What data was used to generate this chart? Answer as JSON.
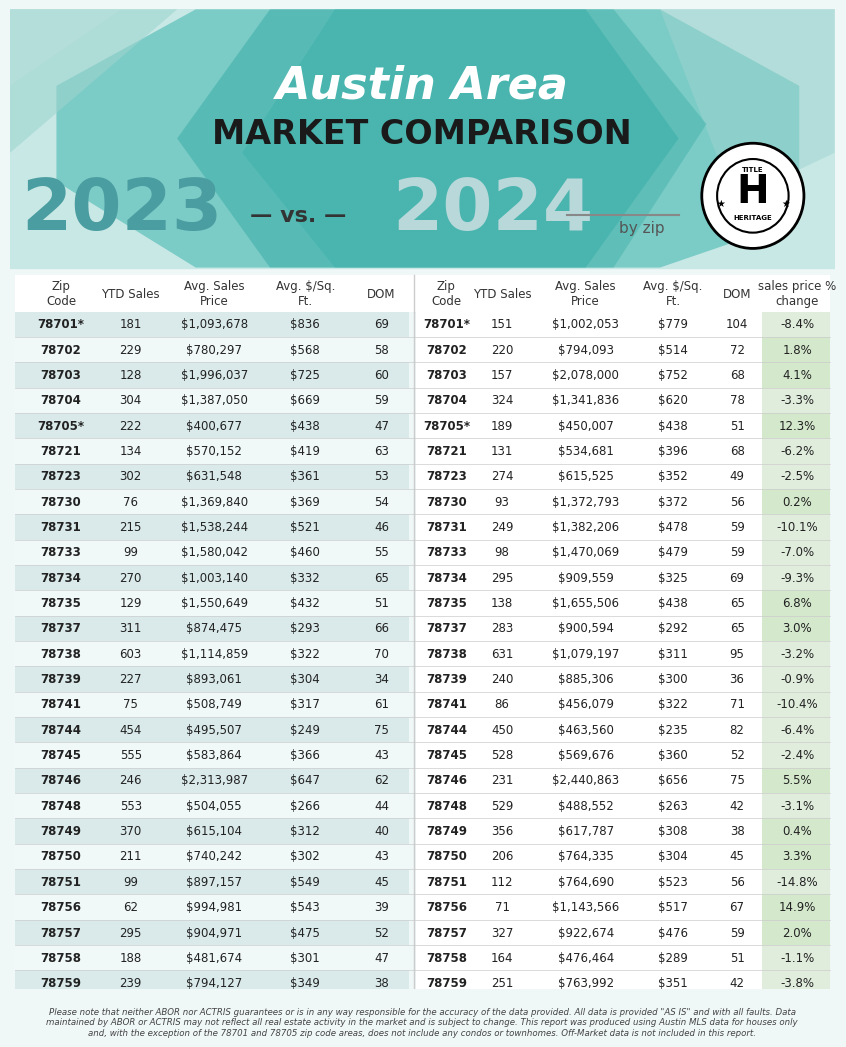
{
  "title_line1": "Austin Area",
  "title_line2": "MARKET COMPARISON",
  "year_left": "2023",
  "year_right": "2024",
  "vs_text": "— vs. —",
  "by_zip": "by zip",
  "headers_2023": [
    "Zip\nCode",
    "YTD Sales",
    "Avg. Sales\nPrice",
    "Avg. $/Sq.\nFt.",
    "DOM"
  ],
  "headers_2024": [
    "Zip\nCode",
    "YTD Sales",
    "Avg. Sales\nPrice",
    "Avg. $/Sq.\nFt.",
    "DOM",
    "sales price %\nchange"
  ],
  "rows": [
    [
      "78701*",
      181,
      "$1,093,678",
      "$836",
      69,
      "78701*",
      151,
      "$1,002,053",
      "$779",
      104,
      "-8.4%"
    ],
    [
      "78702",
      229,
      "$780,297",
      "$568",
      58,
      "78702",
      220,
      "$794,093",
      "$514",
      72,
      "1.8%"
    ],
    [
      "78703",
      128,
      "$1,996,037",
      "$725",
      60,
      "78703",
      157,
      "$2,078,000",
      "$752",
      68,
      "4.1%"
    ],
    [
      "78704",
      304,
      "$1,387,050",
      "$669",
      59,
      "78704",
      324,
      "$1,341,836",
      "$620",
      78,
      "-3.3%"
    ],
    [
      "78705*",
      222,
      "$400,677",
      "$438",
      47,
      "78705*",
      189,
      "$450,007",
      "$438",
      51,
      "12.3%"
    ],
    [
      "78721",
      134,
      "$570,152",
      "$419",
      63,
      "78721",
      131,
      "$534,681",
      "$396",
      68,
      "-6.2%"
    ],
    [
      "78723",
      302,
      "$631,548",
      "$361",
      53,
      "78723",
      274,
      "$615,525",
      "$352",
      49,
      "-2.5%"
    ],
    [
      "78730",
      76,
      "$1,369,840",
      "$369",
      54,
      "78730",
      93,
      "$1,372,793",
      "$372",
      56,
      "0.2%"
    ],
    [
      "78731",
      215,
      "$1,538,244",
      "$521",
      46,
      "78731",
      249,
      "$1,382,206",
      "$478",
      59,
      "-10.1%"
    ],
    [
      "78733",
      99,
      "$1,580,042",
      "$460",
      55,
      "78733",
      98,
      "$1,470,069",
      "$479",
      59,
      "-7.0%"
    ],
    [
      "78734",
      270,
      "$1,003,140",
      "$332",
      65,
      "78734",
      295,
      "$909,559",
      "$325",
      69,
      "-9.3%"
    ],
    [
      "78735",
      129,
      "$1,550,649",
      "$432",
      51,
      "78735",
      138,
      "$1,655,506",
      "$438",
      65,
      "6.8%"
    ],
    [
      "78737",
      311,
      "$874,475",
      "$293",
      66,
      "78737",
      283,
      "$900,594",
      "$292",
      65,
      "3.0%"
    ],
    [
      "78738",
      603,
      "$1,114,859",
      "$322",
      70,
      "78738",
      631,
      "$1,079,197",
      "$311",
      95,
      "-3.2%"
    ],
    [
      "78739",
      227,
      "$893,061",
      "$304",
      34,
      "78739",
      240,
      "$885,306",
      "$300",
      36,
      "-0.9%"
    ],
    [
      "78741",
      75,
      "$508,749",
      "$317",
      61,
      "78741",
      86,
      "$456,079",
      "$322",
      71,
      "-10.4%"
    ],
    [
      "78744",
      454,
      "$495,507",
      "$249",
      75,
      "78744",
      450,
      "$463,560",
      "$235",
      82,
      "-6.4%"
    ],
    [
      "78745",
      555,
      "$583,864",
      "$366",
      43,
      "78745",
      528,
      "$569,676",
      "$360",
      52,
      "-2.4%"
    ],
    [
      "78746",
      246,
      "$2,313,987",
      "$647",
      62,
      "78746",
      231,
      "$2,440,863",
      "$656",
      75,
      "5.5%"
    ],
    [
      "78748",
      553,
      "$504,055",
      "$266",
      44,
      "78748",
      529,
      "$488,552",
      "$263",
      42,
      "-3.1%"
    ],
    [
      "78749",
      370,
      "$615,104",
      "$312",
      40,
      "78749",
      356,
      "$617,787",
      "$308",
      38,
      "0.4%"
    ],
    [
      "78750",
      211,
      "$740,242",
      "$302",
      43,
      "78750",
      206,
      "$764,335",
      "$304",
      45,
      "3.3%"
    ],
    [
      "78751",
      99,
      "$897,157",
      "$549",
      45,
      "78751",
      112,
      "$764,690",
      "$523",
      56,
      "-14.8%"
    ],
    [
      "78756",
      62,
      "$994,981",
      "$543",
      39,
      "78756",
      71,
      "$1,143,566",
      "$517",
      67,
      "14.9%"
    ],
    [
      "78757",
      295,
      "$904,971",
      "$475",
      52,
      "78757",
      327,
      "$922,674",
      "$476",
      59,
      "2.0%"
    ],
    [
      "78758",
      188,
      "$481,674",
      "$301",
      47,
      "78758",
      164,
      "$476,464",
      "$289",
      51,
      "-1.1%"
    ],
    [
      "78759",
      239,
      "$794,127",
      "$349",
      38,
      "78759",
      251,
      "$763,992",
      "$351",
      42,
      "-3.8%"
    ]
  ],
  "disclaimer": "Please note that neither ABOR nor ACTRIS guarantees or is in any way responsible for the accuracy of the data provided. All data is provided \"AS IS\" and with all faults. Data\nmaintained by ABOR or ACTRIS may not reflect all real estate activity in the market and is subject to change. This report was produced using Austin MLS data for houses only\nand, with the exception of the 78701 and 78705 zip code areas, does not include any condos or townhomes. Off-Market data is not included in this report.",
  "bg_color": "#f0f7f7",
  "header_bg_light": "#d6ecec",
  "row_bg_even": "#e8f3f3",
  "row_bg_odd": "#ffffff",
  "change_positive_bg": "#d6e8d0",
  "change_negative_bg": "#e8f0e8",
  "teal_dark": "#3aada8",
  "teal_mid": "#5bbfba",
  "teal_light": "#a8d8d5",
  "year_color_2023": "#5a9ea0",
  "year_color_2024": "#b0cfd0",
  "title_italic_color": "#ffffff",
  "title_normal_color": "#1a1a1a",
  "hex_color": "#4db8b0"
}
